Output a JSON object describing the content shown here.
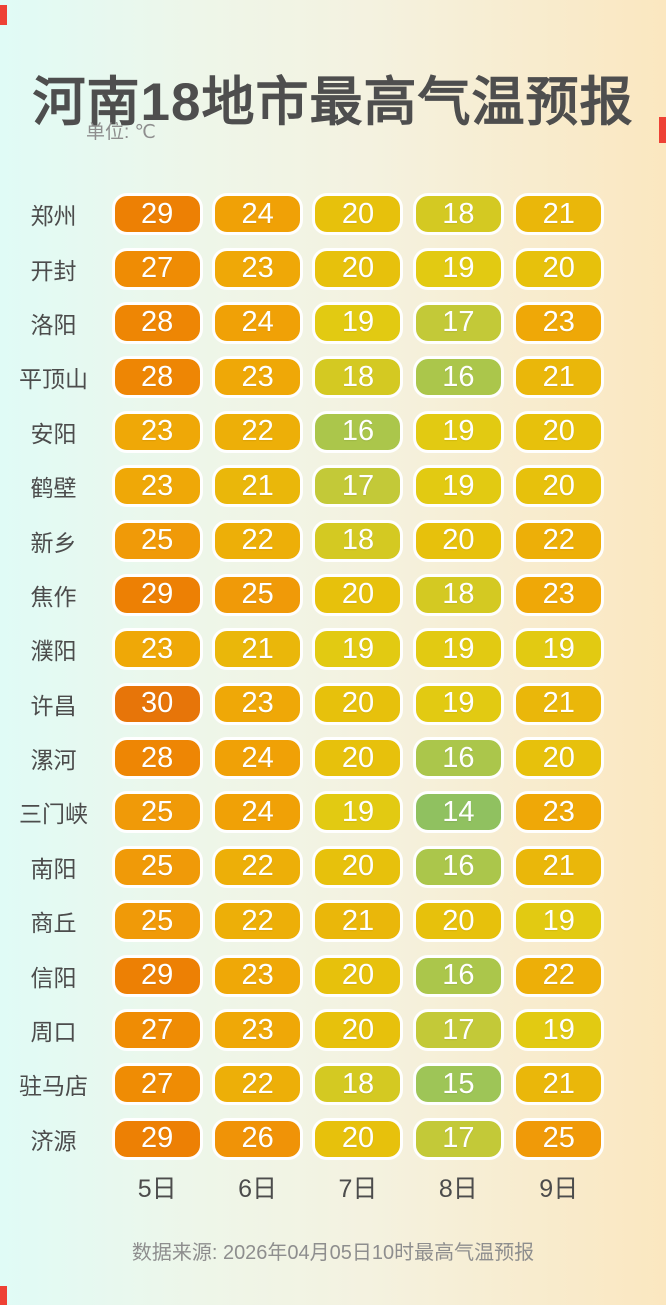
{
  "header": {
    "title": "河南18地市最高气温预报",
    "unit_label": "单位: ℃"
  },
  "footer": {
    "day_labels": [
      "5日",
      "6日",
      "7日",
      "8日",
      "9日"
    ],
    "source": "数据来源: 2026年04月05日10时最高气温预报"
  },
  "colors": {
    "background_left": "#e0fbf6",
    "background_mid": "#f4f2e0",
    "background_right": "#fbe7c0",
    "title_text": "#4e4e4e",
    "muted_text": "#8e8e8e",
    "city_text": "#4c4c4c",
    "pill_text": "#ffffff",
    "pill_border": "#ffffff",
    "edge_marker_red": "#ee4135",
    "temp_scale": {
      "14": "#90c160",
      "15": "#9ec557",
      "16": "#abc64b",
      "17": "#c3c938",
      "18": "#d4c922",
      "19": "#e2ca12",
      "20": "#e7c10c",
      "21": "#eab70a",
      "22": "#edaf08",
      "23": "#efa807",
      "24": "#f0a106",
      "25": "#f09a08",
      "26": "#f09307",
      "27": "#ef8c04",
      "28": "#ee8604",
      "29": "#ed8004",
      "30": "#e77509"
    }
  },
  "chart_data": {
    "type": "heatmap",
    "title": "河南18地市最高气温预报",
    "unit": "℃",
    "columns": [
      "5日",
      "6日",
      "7日",
      "8日",
      "9日"
    ],
    "rows": [
      {
        "city": "郑州",
        "temps": [
          29,
          24,
          20,
          18,
          21
        ]
      },
      {
        "city": "开封",
        "temps": [
          27,
          23,
          20,
          19,
          20
        ]
      },
      {
        "city": "洛阳",
        "temps": [
          28,
          24,
          19,
          17,
          23
        ]
      },
      {
        "city": "平顶山",
        "temps": [
          28,
          23,
          18,
          16,
          21
        ]
      },
      {
        "city": "安阳",
        "temps": [
          23,
          22,
          16,
          19,
          20
        ]
      },
      {
        "city": "鹤壁",
        "temps": [
          23,
          21,
          17,
          19,
          20
        ]
      },
      {
        "city": "新乡",
        "temps": [
          25,
          22,
          18,
          20,
          22
        ]
      },
      {
        "city": "焦作",
        "temps": [
          29,
          25,
          20,
          18,
          23
        ]
      },
      {
        "city": "濮阳",
        "temps": [
          23,
          21,
          19,
          19,
          19
        ]
      },
      {
        "city": "许昌",
        "temps": [
          30,
          23,
          20,
          19,
          21
        ]
      },
      {
        "city": "漯河",
        "temps": [
          28,
          24,
          20,
          16,
          20
        ]
      },
      {
        "city": "三门峡",
        "temps": [
          25,
          24,
          19,
          14,
          23
        ]
      },
      {
        "city": "南阳",
        "temps": [
          25,
          22,
          20,
          16,
          21
        ]
      },
      {
        "city": "商丘",
        "temps": [
          25,
          22,
          21,
          20,
          19
        ]
      },
      {
        "city": "信阳",
        "temps": [
          29,
          23,
          20,
          16,
          22
        ]
      },
      {
        "city": "周口",
        "temps": [
          27,
          23,
          20,
          17,
          19
        ]
      },
      {
        "city": "驻马店",
        "temps": [
          27,
          22,
          18,
          15,
          21
        ]
      },
      {
        "city": "济源",
        "temps": [
          29,
          26,
          20,
          17,
          25
        ]
      }
    ],
    "value_range": [
      14,
      30
    ],
    "legend": "none",
    "source": "数据来源: 2026年04月05日10时最高气温预报"
  }
}
